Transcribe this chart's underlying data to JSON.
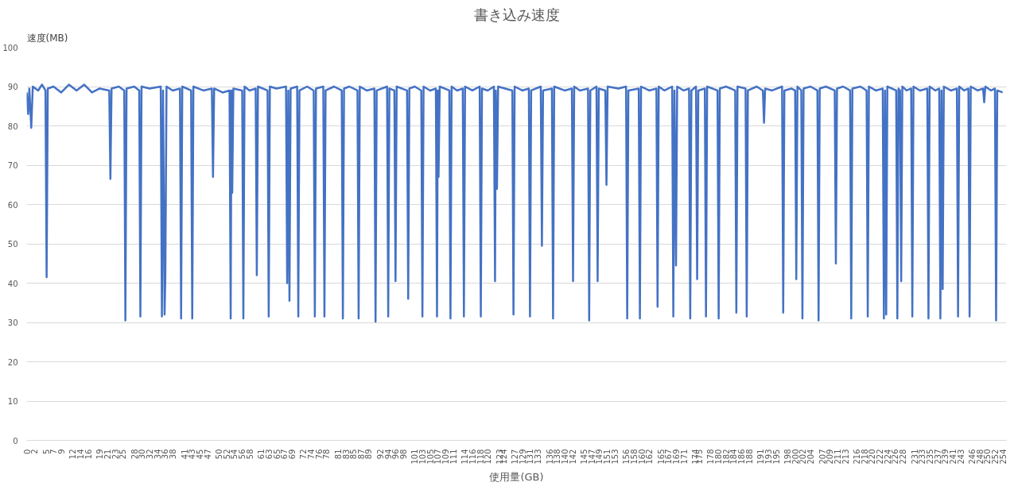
{
  "chart_data": {
    "type": "line",
    "title": "書き込み速度",
    "xlabel": "使用量(GB)",
    "ylabel": "速度(MB)",
    "x": [
      0,
      0.4,
      0.7,
      1.2,
      1.6,
      3,
      4,
      4.9,
      5.2,
      5.5,
      7,
      9,
      11,
      13,
      15,
      17,
      19,
      21.5,
      21.8,
      22.1,
      24,
      25.4,
      25.7,
      26.0,
      28,
      29.3,
      29.6,
      29.9,
      32,
      34.9,
      35.2,
      35.5,
      35.9,
      36.1,
      36.4,
      38,
      39.9,
      40.2,
      40.5,
      42.8,
      43.1,
      43.4,
      46,
      48.2,
      48.5,
      48.8,
      51,
      52.8,
      53.1,
      53.3,
      53.5,
      53.8,
      56.1,
      56.4,
      56.7,
      58,
      59.6,
      59.9,
      60.2,
      62.7,
      63.0,
      63.3,
      65,
      67.5,
      67.8,
      68.1,
      68.4,
      68.7,
      70.4,
      70.7,
      71.0,
      73,
      74.7,
      75.0,
      75.3,
      77.2,
      77.5,
      77.8,
      80,
      82.0,
      82.3,
      82.6,
      84,
      86.1,
      86.4,
      86.7,
      88.5,
      90.5,
      90.8,
      91.1,
      93.8,
      94.1,
      94.4,
      95.7,
      96.0,
      96.3,
      99.0,
      99.3,
      99.6,
      101,
      102.7,
      103.0,
      103.3,
      105,
      106.5,
      106.8,
      107.0,
      107.2,
      107.5,
      110.0,
      110.3,
      110.6,
      112,
      113.5,
      113.8,
      114.1,
      116,
      117.9,
      118.2,
      118.5,
      120,
      121.6,
      121.9,
      122.1,
      122.4,
      122.7,
      124.5,
      126.4,
      126.7,
      127.0,
      129,
      130.7,
      131.0,
      131.3,
      133.8,
      134.1,
      134.4,
      136.7,
      137.0,
      137.3,
      140,
      141.9,
      142.2,
      142.5,
      144,
      146.1,
      146.4,
      146.7,
      148.3,
      148.6,
      148.9,
      150.6,
      150.9,
      151.2,
      154,
      156.0,
      156.3,
      156.6,
      159.3,
      159.6,
      159.9,
      162,
      163.9,
      164.2,
      164.5,
      166,
      168.0,
      168.3,
      168.6,
      169.0,
      169.3,
      171,
      172.4,
      172.7,
      173.0,
      174.2,
      174.5,
      174.8,
      176.5,
      176.8,
      177.1,
      179.8,
      180.1,
      180.4,
      182,
      184.4,
      184.7,
      185.0,
      187.1,
      187.4,
      187.7,
      190,
      191.6,
      191.9,
      192.2,
      194,
      196.6,
      196.9,
      197.2,
      199,
      200.0,
      200.3,
      200.6,
      201.6,
      201.9,
      202.2,
      204,
      205.8,
      206.1,
      206.4,
      208,
      210.3,
      210.6,
      210.9,
      212.5,
      214.3,
      214.6,
      214.9,
      217,
      218.6,
      218.9,
      219.2,
      221,
      222.8,
      223.1,
      223.4,
      223.7,
      224.0,
      226.3,
      226.6,
      226.9,
      227.3,
      227.6,
      227.9,
      229,
      230.2,
      230.5,
      230.8,
      232.5,
      234.4,
      234.7,
      235.0,
      236.5,
      237.5,
      237.8,
      238.1,
      238.4,
      238.7,
      240.5,
      242.1,
      242.4,
      242.7,
      244,
      245.1,
      245.4,
      245.7,
      247.5,
      248.9,
      249.2,
      249.5,
      251,
      252.0,
      252.3,
      252.6,
      254
    ],
    "series": [
      {
        "color": "#4472c4",
        "values": [
          88.5,
          83,
          89.5,
          79.5,
          90,
          89,
          90.5,
          89,
          41.5,
          89.5,
          90,
          88.5,
          90.5,
          89,
          90.5,
          88.5,
          89.5,
          89,
          66.5,
          89.5,
          90,
          89,
          30.5,
          89.5,
          90,
          89,
          31.5,
          90,
          89.5,
          90,
          31.5,
          89,
          32,
          42,
          90,
          89,
          89.5,
          31,
          90,
          89,
          31,
          90,
          89,
          89.5,
          67,
          89.5,
          88.5,
          89,
          31,
          89,
          63,
          89.5,
          89,
          31,
          90,
          89,
          89.5,
          42,
          90,
          89,
          31.5,
          90,
          89.5,
          90,
          40,
          89,
          35.5,
          89.5,
          90,
          31.5,
          89,
          90,
          89,
          31.5,
          89.5,
          90,
          31.5,
          89,
          90,
          89,
          31,
          89.5,
          90,
          89,
          31,
          90,
          89,
          89.5,
          30.2,
          89,
          90,
          31.5,
          89.5,
          89,
          40.5,
          90,
          89,
          36,
          89.5,
          90,
          89,
          31.5,
          90,
          89,
          89.5,
          31.5,
          89,
          67,
          90,
          89,
          31,
          90,
          89,
          89.5,
          31.5,
          90,
          89,
          90,
          31.5,
          89.5,
          89,
          90,
          40.5,
          89,
          64,
          90,
          89.5,
          89,
          32,
          90,
          89,
          89.5,
          31.5,
          89,
          90,
          49.5,
          89,
          89.5,
          31,
          90,
          89,
          89.5,
          40.5,
          90,
          89,
          89.5,
          30.5,
          89,
          90,
          40.5,
          89.5,
          89,
          65,
          90,
          89.5,
          90,
          31,
          89,
          89.5,
          31,
          90,
          89,
          89.5,
          34,
          90,
          89,
          90,
          31.5,
          89,
          44.5,
          90,
          89,
          89.5,
          31,
          89,
          90,
          41,
          89,
          89.5,
          31.5,
          90,
          89,
          31,
          89.5,
          90,
          89,
          32.5,
          90,
          89.5,
          31.5,
          89,
          90,
          89,
          80.8,
          89.5,
          89,
          90,
          32.5,
          89,
          89.5,
          89,
          41,
          90,
          89,
          31,
          89.5,
          90,
          89,
          30.5,
          89.5,
          90,
          89,
          45,
          89.5,
          90,
          89,
          31,
          89.5,
          90,
          89,
          31.5,
          90,
          89,
          89.5,
          31,
          89,
          32,
          90,
          89,
          31,
          89.5,
          89,
          40.5,
          90,
          89,
          89.5,
          31.5,
          90,
          89,
          89.5,
          31,
          90,
          89,
          89.5,
          31,
          89,
          38.5,
          90,
          89,
          89.5,
          31.5,
          90,
          89,
          89.5,
          31.5,
          90,
          89,
          89.5,
          86,
          90,
          89,
          89.5,
          30.5,
          89,
          88.5
        ]
      }
    ],
    "xlim": [
      0,
      255
    ],
    "xticks": [
      0,
      2,
      5,
      7,
      9,
      12,
      14,
      16,
      19,
      21,
      23,
      25,
      28,
      30,
      32,
      34,
      36,
      38,
      41,
      43,
      45,
      47,
      50,
      52,
      54,
      56,
      58,
      61,
      63,
      65,
      67,
      69,
      72,
      74,
      76,
      78,
      81,
      83,
      85,
      87,
      89,
      92,
      94,
      96,
      98,
      101,
      103,
      105,
      107,
      109,
      111,
      114,
      116,
      118,
      120,
      123,
      124,
      127,
      129,
      131,
      133,
      136,
      138,
      140,
      142,
      145,
      147,
      149,
      151,
      153,
      156,
      158,
      160,
      162,
      165,
      167,
      169,
      171,
      174,
      175,
      178,
      180,
      182,
      184,
      186,
      188,
      191,
      193,
      195,
      198,
      200,
      202,
      204,
      207,
      209,
      211,
      213,
      216,
      218,
      220,
      222,
      224,
      226,
      228,
      231,
      233,
      235,
      237,
      239,
      241,
      243,
      246,
      248,
      250,
      252,
      254
    ],
    "ylim": [
      0,
      100
    ],
    "yticks": [
      0,
      10,
      20,
      30,
      40,
      50,
      60,
      70,
      80,
      90,
      100
    ],
    "grid": "y",
    "marker": "none",
    "line_style": "solid"
  }
}
